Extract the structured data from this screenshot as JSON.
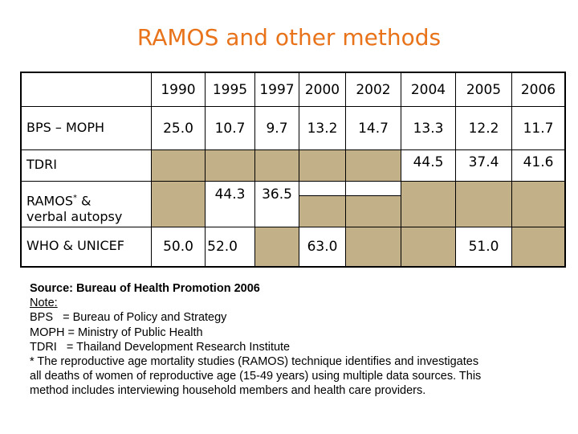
{
  "title": "RAMOS and other methods",
  "table": {
    "years": [
      "1990",
      "1995",
      "1997",
      "2000",
      "2002",
      "2004",
      "2005",
      "2006"
    ],
    "rows": [
      {
        "label": "BPS – MOPH",
        "values": [
          "25.0",
          "10.7",
          "9.7",
          "13.2",
          "14.7",
          "13.3",
          "12.2",
          "11.7"
        ]
      },
      {
        "label": "TDRI",
        "values": [
          "",
          "",
          "",
          "",
          "",
          "44.5",
          "37.4",
          "41.6"
        ]
      },
      {
        "label_line1": "RAMOS",
        "label_sup": "*",
        "label_rest": " &",
        "label_line2": "verbal autopsy",
        "values": [
          "",
          "44.3",
          "36.5",
          "",
          "",
          "",
          "",
          ""
        ]
      },
      {
        "label": "WHO & UNICEF",
        "values": [
          "50.0",
          "52.0",
          "",
          "63.0",
          "",
          "",
          "51.0",
          ""
        ]
      }
    ]
  },
  "notes": {
    "source": "Source: Bureau of Health Promotion 2006",
    "note_label": "Note:",
    "bps": "BPS   = Bureau of Policy and Strategy",
    "moph": "MOPH = Ministry of Public Health",
    "tdri": "TDRI   = Thailand Development Research Institute",
    "ramos_1": "* The reproductive age mortality studies (RAMOS) technique identifies and investigates",
    "ramos_2": "all deaths of women of reproductive age (15-49 years) using multiple data sources. This",
    "ramos_3": "method includes interviewing household members and health care providers."
  }
}
